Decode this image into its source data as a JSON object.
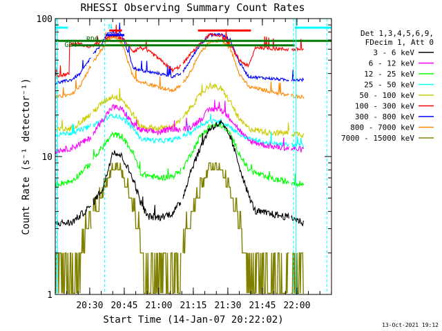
{
  "chart_data": {
    "type": "line",
    "title": "RHESSI Observing Summary Count Rates",
    "xlabel": "Start Time (14-Jan-07 20:22:02)",
    "ylabel": "Count Rate (s⁻¹ detector⁻¹)",
    "x_ticks": [
      "20:30",
      "20:45",
      "21:00",
      "21:15",
      "21:30",
      "21:45",
      "22:00"
    ],
    "x_range_minutes": [
      -7,
      113
    ],
    "y_scale": "log",
    "y_ticks": [
      "1",
      "10",
      "100"
    ],
    "ylim": [
      1,
      100
    ],
    "legend_header": [
      "Det 1,3,4,5,6,9,",
      "FDecim 1, Att 0"
    ],
    "series": [
      {
        "name": "3 - 6 keV",
        "color": "#000000",
        "values": [
          [
            -7,
            3.3
          ],
          [
            0,
            3.3
          ],
          [
            8,
            4.3
          ],
          [
            14,
            6.0
          ],
          [
            18,
            11.0
          ],
          [
            22,
            10.0
          ],
          [
            27,
            6.8
          ],
          [
            30,
            4.7
          ],
          [
            33,
            3.7
          ],
          [
            38,
            3.6
          ],
          [
            44,
            3.9
          ],
          [
            48,
            4.8
          ],
          [
            52,
            8.0
          ],
          [
            56,
            11.5
          ],
          [
            60,
            16.0
          ],
          [
            65,
            17.5
          ],
          [
            69,
            14.0
          ],
          [
            73,
            8.5
          ],
          [
            77,
            5.2
          ],
          [
            80,
            4.0
          ],
          [
            88,
            3.8
          ],
          [
            96,
            3.6
          ],
          [
            101,
            3.3
          ]
        ]
      },
      {
        "name": "6 - 12 keV",
        "color": "#ff00ff",
        "values": [
          [
            -7,
            11.0
          ],
          [
            0,
            11.5
          ],
          [
            8,
            13.5
          ],
          [
            14,
            19.0
          ],
          [
            18,
            23.0
          ],
          [
            22,
            22.0
          ],
          [
            27,
            17.0
          ],
          [
            30,
            15.5
          ],
          [
            38,
            15.0
          ],
          [
            44,
            16.0
          ],
          [
            48,
            15.5
          ],
          [
            52,
            16.5
          ],
          [
            56,
            18.5
          ],
          [
            60,
            22.0
          ],
          [
            65,
            22.0
          ],
          [
            69,
            19.0
          ],
          [
            73,
            15.5
          ],
          [
            77,
            13.0
          ],
          [
            85,
            12.0
          ],
          [
            93,
            11.5
          ],
          [
            101,
            11.2
          ]
        ]
      },
      {
        "name": "12 - 25 keV",
        "color": "#00ff00",
        "values": [
          [
            -7,
            6.3
          ],
          [
            0,
            6.6
          ],
          [
            8,
            8.8
          ],
          [
            14,
            12.0
          ],
          [
            18,
            14.5
          ],
          [
            22,
            14.0
          ],
          [
            27,
            10.5
          ],
          [
            30,
            7.5
          ],
          [
            38,
            7.0
          ],
          [
            44,
            7.2
          ],
          [
            48,
            8.0
          ],
          [
            52,
            10.5
          ],
          [
            56,
            14.0
          ],
          [
            60,
            16.5
          ],
          [
            65,
            17.0
          ],
          [
            69,
            14.5
          ],
          [
            73,
            10.5
          ],
          [
            77,
            8.0
          ],
          [
            85,
            7.0
          ],
          [
            93,
            6.6
          ],
          [
            101,
            6.3
          ]
        ]
      },
      {
        "name": "25 - 50 keV",
        "color": "#00ffff",
        "values": [
          [
            -7,
            14.5
          ],
          [
            0,
            14.8
          ],
          [
            8,
            16.5
          ],
          [
            14,
            18.5
          ],
          [
            18,
            20.0
          ],
          [
            22,
            19.0
          ],
          [
            27,
            16.0
          ],
          [
            30,
            13.5
          ],
          [
            38,
            13.0
          ],
          [
            44,
            13.2
          ],
          [
            48,
            14.0
          ],
          [
            52,
            15.0
          ],
          [
            56,
            17.0
          ],
          [
            60,
            18.0
          ],
          [
            65,
            18.0
          ],
          [
            69,
            16.5
          ],
          [
            73,
            14.5
          ],
          [
            77,
            13.5
          ],
          [
            85,
            12.5
          ],
          [
            93,
            12.2
          ],
          [
            101,
            12.0
          ]
        ]
      },
      {
        "name": "50 - 100 keV",
        "color": "#cccc00",
        "values": [
          [
            -7,
            15.5
          ],
          [
            0,
            16.0
          ],
          [
            8,
            20.0
          ],
          [
            14,
            25.0
          ],
          [
            18,
            27.5
          ],
          [
            22,
            26.0
          ],
          [
            27,
            20.0
          ],
          [
            30,
            16.5
          ],
          [
            38,
            16.0
          ],
          [
            44,
            16.5
          ],
          [
            48,
            18.5
          ],
          [
            52,
            23.0
          ],
          [
            56,
            28.0
          ],
          [
            60,
            33.0
          ],
          [
            65,
            31.0
          ],
          [
            69,
            25.0
          ],
          [
            73,
            18.5
          ],
          [
            77,
            16.0
          ],
          [
            85,
            15.0
          ],
          [
            93,
            14.8
          ],
          [
            101,
            14.5
          ]
        ]
      },
      {
        "name": "100 - 300 keV",
        "color": "#ff0000",
        "values": [
          [
            -7,
            38
          ],
          [
            -1,
            40
          ],
          [
            -1,
            65
          ],
          [
            3,
            66
          ],
          [
            8,
            62
          ],
          [
            14,
            69
          ],
          [
            18,
            76
          ],
          [
            22,
            72
          ],
          [
            27,
            58
          ],
          [
            30,
            62
          ],
          [
            35,
            56
          ],
          [
            40,
            48
          ],
          [
            44,
            42
          ],
          [
            48,
            46
          ],
          [
            52,
            56
          ],
          [
            56,
            66
          ],
          [
            60,
            76
          ],
          [
            65,
            76
          ],
          [
            69,
            64
          ],
          [
            73,
            50
          ],
          [
            77,
            45
          ],
          [
            80,
            62
          ],
          [
            85,
            61
          ],
          [
            93,
            60
          ],
          [
            101,
            60
          ]
        ]
      },
      {
        "name": "300 - 800 keV",
        "color": "#0000ff",
        "values": [
          [
            -7,
            34
          ],
          [
            0,
            36
          ],
          [
            4,
            40
          ],
          [
            8,
            51
          ],
          [
            12,
            62
          ],
          [
            16,
            78
          ],
          [
            19,
            80
          ],
          [
            22,
            76
          ],
          [
            27,
            44
          ],
          [
            30,
            42
          ],
          [
            38,
            40
          ],
          [
            44,
            38
          ],
          [
            48,
            40
          ],
          [
            52,
            51
          ],
          [
            56,
            65
          ],
          [
            60,
            76
          ],
          [
            65,
            77
          ],
          [
            69,
            70
          ],
          [
            73,
            48
          ],
          [
            77,
            38
          ],
          [
            85,
            37
          ],
          [
            93,
            36
          ],
          [
            101,
            36
          ]
        ]
      },
      {
        "name": "800 - 7000 keV",
        "color": "#ff8800",
        "values": [
          [
            -7,
            27
          ],
          [
            0,
            28
          ],
          [
            4,
            33
          ],
          [
            8,
            44
          ],
          [
            12,
            56
          ],
          [
            16,
            70
          ],
          [
            19,
            74
          ],
          [
            22,
            66
          ],
          [
            27,
            37
          ],
          [
            30,
            35
          ],
          [
            38,
            32
          ],
          [
            44,
            30
          ],
          [
            48,
            33
          ],
          [
            52,
            42
          ],
          [
            56,
            56
          ],
          [
            60,
            68
          ],
          [
            65,
            70
          ],
          [
            69,
            61
          ],
          [
            73,
            40
          ],
          [
            77,
            32
          ],
          [
            85,
            30
          ],
          [
            93,
            28
          ],
          [
            101,
            27
          ]
        ]
      },
      {
        "name": "7000 - 15000 keV",
        "color": "#808000",
        "values": [
          [
            -7,
            1.4
          ],
          [
            0,
            1.5
          ],
          [
            8,
            3.0
          ],
          [
            14,
            5.5
          ],
          [
            18,
            8.3
          ],
          [
            22,
            7.5
          ],
          [
            27,
            4.2
          ],
          [
            30,
            2.3
          ],
          [
            33,
            1.5
          ],
          [
            38,
            1.4
          ],
          [
            44,
            1.4
          ],
          [
            48,
            2.0
          ],
          [
            52,
            3.5
          ],
          [
            56,
            5.5
          ],
          [
            60,
            8.3
          ],
          [
            65,
            8.0
          ],
          [
            69,
            5.5
          ],
          [
            73,
            3.0
          ],
          [
            77,
            1.5
          ],
          [
            85,
            1.4
          ],
          [
            93,
            1.4
          ],
          [
            101,
            1.4
          ]
        ]
      }
    ],
    "annotations": [
      {
        "text": "N",
        "color": "#00ffff"
      },
      {
        "text": "RD0",
        "color": "#006600"
      },
      {
        "text": "GD4",
        "color": "#006600"
      }
    ],
    "timestamp": "13-Oct-2021 19:12"
  }
}
